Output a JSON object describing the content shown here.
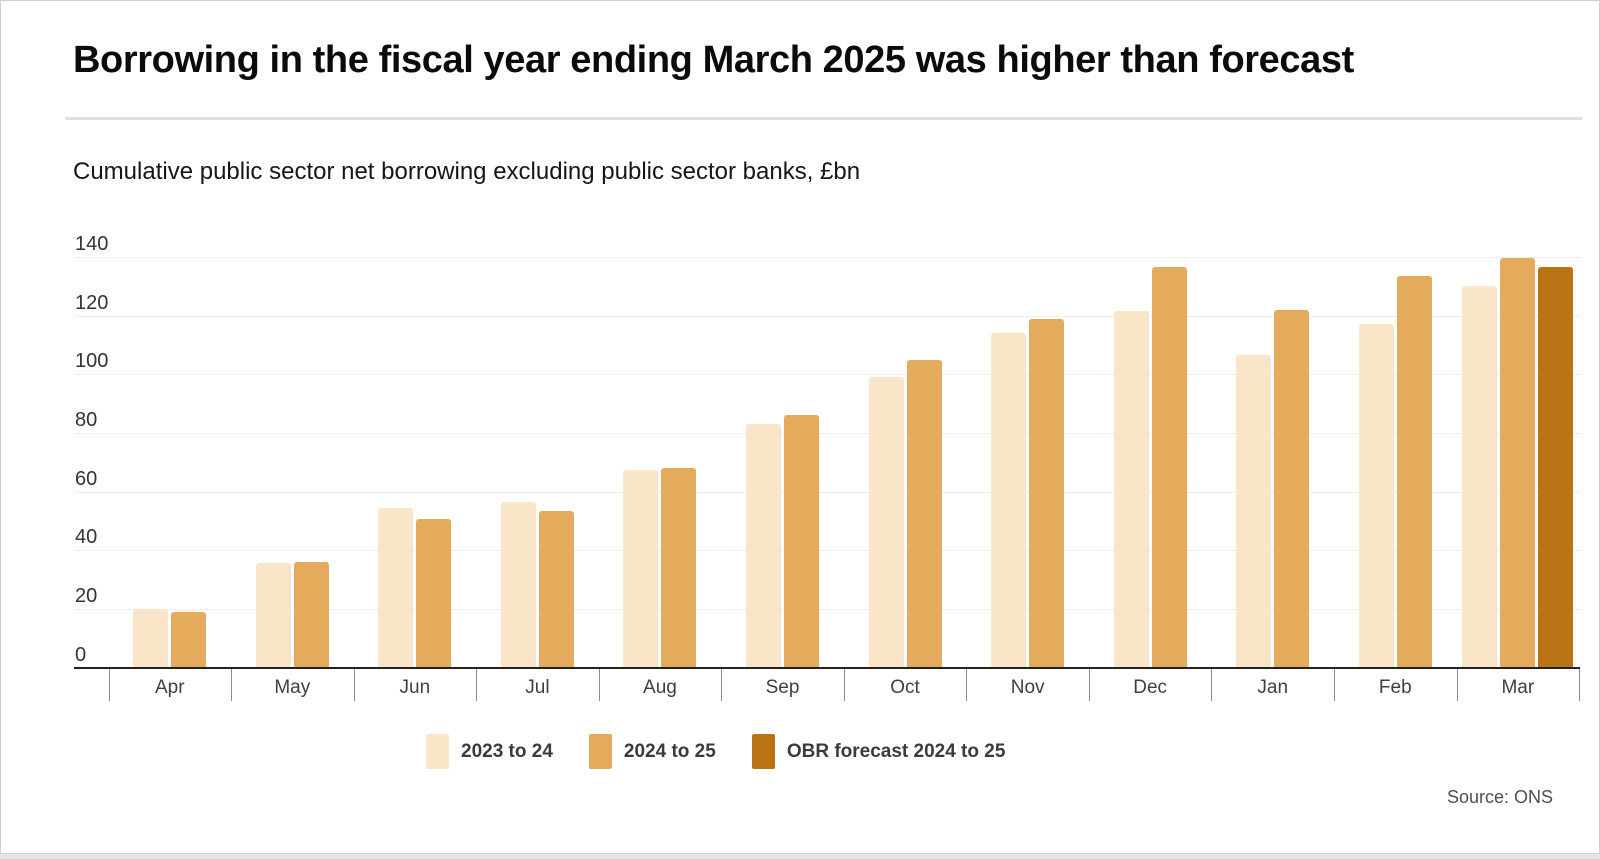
{
  "title": "Borrowing in the fiscal year ending March 2025 was higher than forecast",
  "subtitle": "Cumulative public sector net borrowing excluding public sector banks, £bn",
  "source": "Source: ONS",
  "colors": {
    "series_2023_24": "#FBE5C8",
    "series_2024_25": "#E5AB5C",
    "series_obr_forecast": "#BA7313",
    "axis": "#222222",
    "grid": "#ececec",
    "text": "#3f3f3f"
  },
  "legend": {
    "items": [
      {
        "label": "2023 to 24"
      },
      {
        "label": "2024 to 25"
      },
      {
        "label": "OBR forecast 2024 to 25"
      }
    ]
  },
  "chart_data": {
    "type": "bar",
    "title": "Borrowing in the fiscal year ending March 2025 was higher than forecast",
    "subtitle": "Cumulative public sector net borrowing excluding public sector banks, £bn",
    "categories": [
      "Apr",
      "May",
      "Jun",
      "Jul",
      "Aug",
      "Sep",
      "Oct",
      "Nov",
      "Dec",
      "Jan",
      "Feb",
      "Mar"
    ],
    "series": [
      {
        "name": "2023 to 24",
        "color": "#FBE5C8",
        "values": [
          20,
          35.5,
          54.5,
          56.5,
          67.5,
          83,
          99,
          114,
          121.5,
          106.5,
          117,
          130
        ]
      },
      {
        "name": "2024 to 25",
        "color": "#E5AB5C",
        "values": [
          19,
          36,
          50.5,
          53.5,
          68,
          86,
          105,
          119,
          136.5,
          122,
          133.5,
          139.5
        ]
      },
      {
        "name": "OBR forecast 2024 to 25",
        "color": "#BA7313",
        "values": [
          null,
          null,
          null,
          null,
          null,
          null,
          null,
          null,
          null,
          null,
          null,
          136.5
        ]
      }
    ],
    "xlabel": "",
    "ylabel": "£bn",
    "yticks": [
      0,
      20,
      40,
      60,
      80,
      100,
      120,
      140
    ],
    "ylim": [
      0,
      140
    ],
    "grid": true,
    "legend_position": "bottom"
  }
}
